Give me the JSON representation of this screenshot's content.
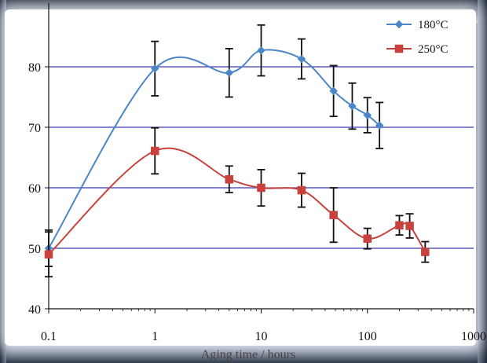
{
  "chart_data": {
    "type": "line",
    "title": "",
    "xlabel": "Aging time / hours",
    "ylabel": "",
    "xscale": "log",
    "xlim": [
      0.1,
      1000
    ],
    "ylim": [
      40,
      90
    ],
    "x_ticks": [
      0.1,
      1,
      10,
      100,
      1000
    ],
    "x_tick_labels": [
      "0.1",
      "1",
      "10",
      "100",
      "1000"
    ],
    "y_ticks": [
      40,
      50,
      60,
      70,
      80
    ],
    "y_tick_labels": [
      "40",
      "50",
      "60",
      "70",
      "80"
    ],
    "grid": "horizontal",
    "legend_position": "top-right",
    "series": [
      {
        "name": "180°C",
        "color": "#4a86c8",
        "marker": "diamond",
        "x": [
          0.1,
          1,
          5,
          10,
          24,
          48,
          72,
          100,
          130
        ],
        "y": [
          50,
          79.7,
          79,
          82.7,
          81.3,
          76,
          73.5,
          72,
          70.3
        ],
        "err": [
          3,
          4.5,
          4,
          4.2,
          3.3,
          4.2,
          3.8,
          2.9,
          3.8
        ]
      },
      {
        "name": "250°C",
        "color": "#c8413c",
        "marker": "square",
        "x": [
          0.1,
          1,
          5,
          10,
          24,
          48,
          100,
          200,
          250,
          350
        ],
        "y": [
          49,
          66.1,
          61.4,
          60,
          59.6,
          55.5,
          51.6,
          53.8,
          53.7,
          49.4
        ],
        "err": [
          3.7,
          3.8,
          2.2,
          3,
          2.8,
          4.5,
          1.7,
          1.6,
          2,
          1.7
        ]
      }
    ]
  }
}
